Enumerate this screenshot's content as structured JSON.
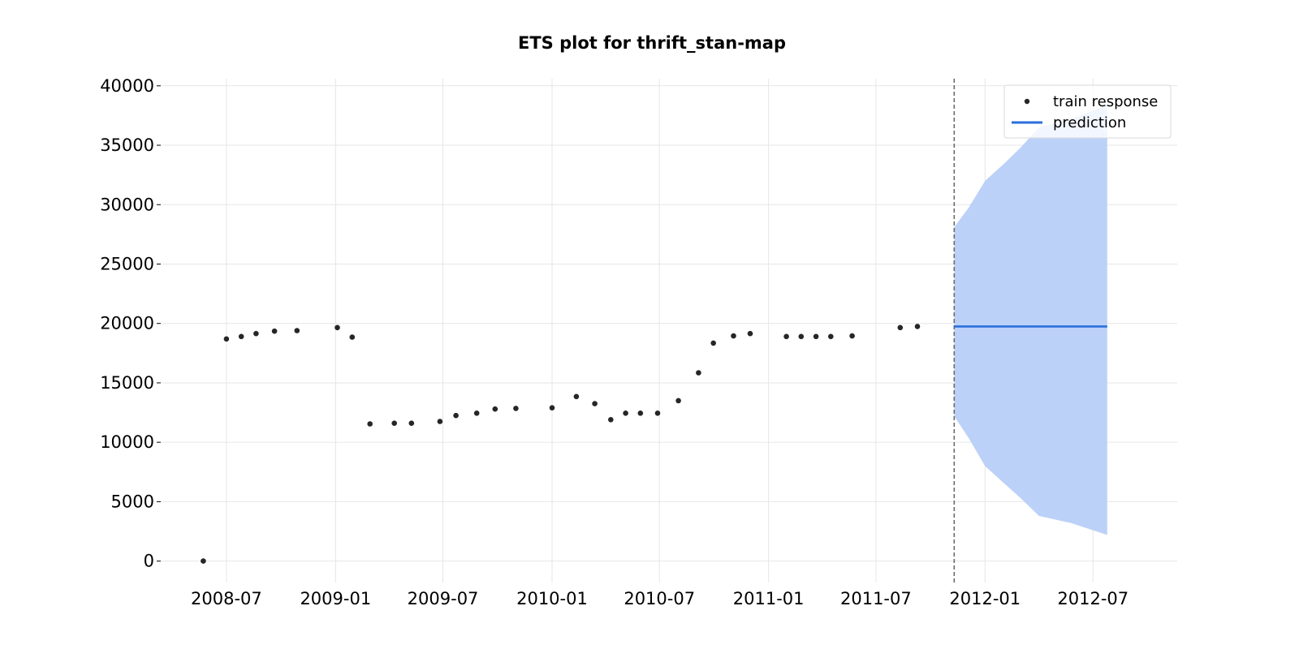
{
  "chart_data": {
    "type": "scatter",
    "title": "ETS plot for thrift_stan-map",
    "xlabel": "",
    "ylabel": "",
    "x_axis_type": "date",
    "xlim": [
      "2008-03-15",
      "2012-11-20"
    ],
    "ylim": [
      -1800,
      40600
    ],
    "x_ticks": [
      "2008-07-01",
      "2009-01-01",
      "2009-07-01",
      "2010-01-01",
      "2010-07-01",
      "2011-01-01",
      "2011-07-01",
      "2012-01-01",
      "2012-07-01"
    ],
    "x_tick_labels": [
      "2008-07",
      "2009-01",
      "2009-07",
      "2010-01",
      "2010-07",
      "2011-01",
      "2011-07",
      "2012-01",
      "2012-07"
    ],
    "y_ticks": [
      0,
      5000,
      10000,
      15000,
      20000,
      25000,
      30000,
      35000,
      40000
    ],
    "y_tick_labels": [
      "0",
      "5000",
      "10000",
      "15000",
      "20000",
      "25000",
      "30000",
      "35000",
      "40000"
    ],
    "grid": true,
    "legend_position": "top-right",
    "cutoff_date": "2011-11-10",
    "series": [
      {
        "name": "train response",
        "kind": "scatter",
        "color": "#262626",
        "points": [
          {
            "x": "2008-05-23",
            "y": 0
          },
          {
            "x": "2008-07-01",
            "y": 18700
          },
          {
            "x": "2008-07-26",
            "y": 18900
          },
          {
            "x": "2008-08-20",
            "y": 19150
          },
          {
            "x": "2008-09-20",
            "y": 19350
          },
          {
            "x": "2008-10-28",
            "y": 19400
          },
          {
            "x": "2009-01-04",
            "y": 19650
          },
          {
            "x": "2009-01-29",
            "y": 18850
          },
          {
            "x": "2009-02-28",
            "y": 11550
          },
          {
            "x": "2009-04-10",
            "y": 11600
          },
          {
            "x": "2009-05-09",
            "y": 11600
          },
          {
            "x": "2009-06-26",
            "y": 11750
          },
          {
            "x": "2009-07-23",
            "y": 12250
          },
          {
            "x": "2009-08-27",
            "y": 12450
          },
          {
            "x": "2009-09-27",
            "y": 12800
          },
          {
            "x": "2009-11-01",
            "y": 12850
          },
          {
            "x": "2010-01-01",
            "y": 12900
          },
          {
            "x": "2010-02-11",
            "y": 13850
          },
          {
            "x": "2010-03-14",
            "y": 13250
          },
          {
            "x": "2010-04-10",
            "y": 11900
          },
          {
            "x": "2010-05-05",
            "y": 12450
          },
          {
            "x": "2010-05-30",
            "y": 12450
          },
          {
            "x": "2010-06-28",
            "y": 12450
          },
          {
            "x": "2010-08-02",
            "y": 13500
          },
          {
            "x": "2010-09-05",
            "y": 15850
          },
          {
            "x": "2010-09-30",
            "y": 18350
          },
          {
            "x": "2010-11-03",
            "y": 18950
          },
          {
            "x": "2010-12-01",
            "y": 19150
          },
          {
            "x": "2011-01-31",
            "y": 18900
          },
          {
            "x": "2011-02-25",
            "y": 18900
          },
          {
            "x": "2011-03-22",
            "y": 18900
          },
          {
            "x": "2011-04-16",
            "y": 18900
          },
          {
            "x": "2011-05-22",
            "y": 18950
          },
          {
            "x": "2011-08-11",
            "y": 19650
          },
          {
            "x": "2011-09-09",
            "y": 19750
          }
        ]
      },
      {
        "name": "prediction",
        "kind": "line",
        "color": "#2a6fdb",
        "points": [
          {
            "x": "2011-11-10",
            "y": 19750
          },
          {
            "x": "2012-07-25",
            "y": 19750
          }
        ]
      }
    ],
    "interval": {
      "color": "#bcd1f7",
      "points": [
        {
          "x": "2011-11-10",
          "lower": 12200,
          "upper": 28100
        },
        {
          "x": "2011-12-05",
          "lower": 10300,
          "upper": 29800
        },
        {
          "x": "2012-01-01",
          "lower": 8000,
          "upper": 32000
        },
        {
          "x": "2012-02-01",
          "lower": 6600,
          "upper": 33400
        },
        {
          "x": "2012-03-01",
          "lower": 5300,
          "upper": 34800
        },
        {
          "x": "2012-04-01",
          "lower": 3800,
          "upper": 36500
        },
        {
          "x": "2012-05-25",
          "lower": 3200,
          "upper": 37200
        },
        {
          "x": "2012-07-25",
          "lower": 2200,
          "upper": 38400
        }
      ]
    }
  }
}
